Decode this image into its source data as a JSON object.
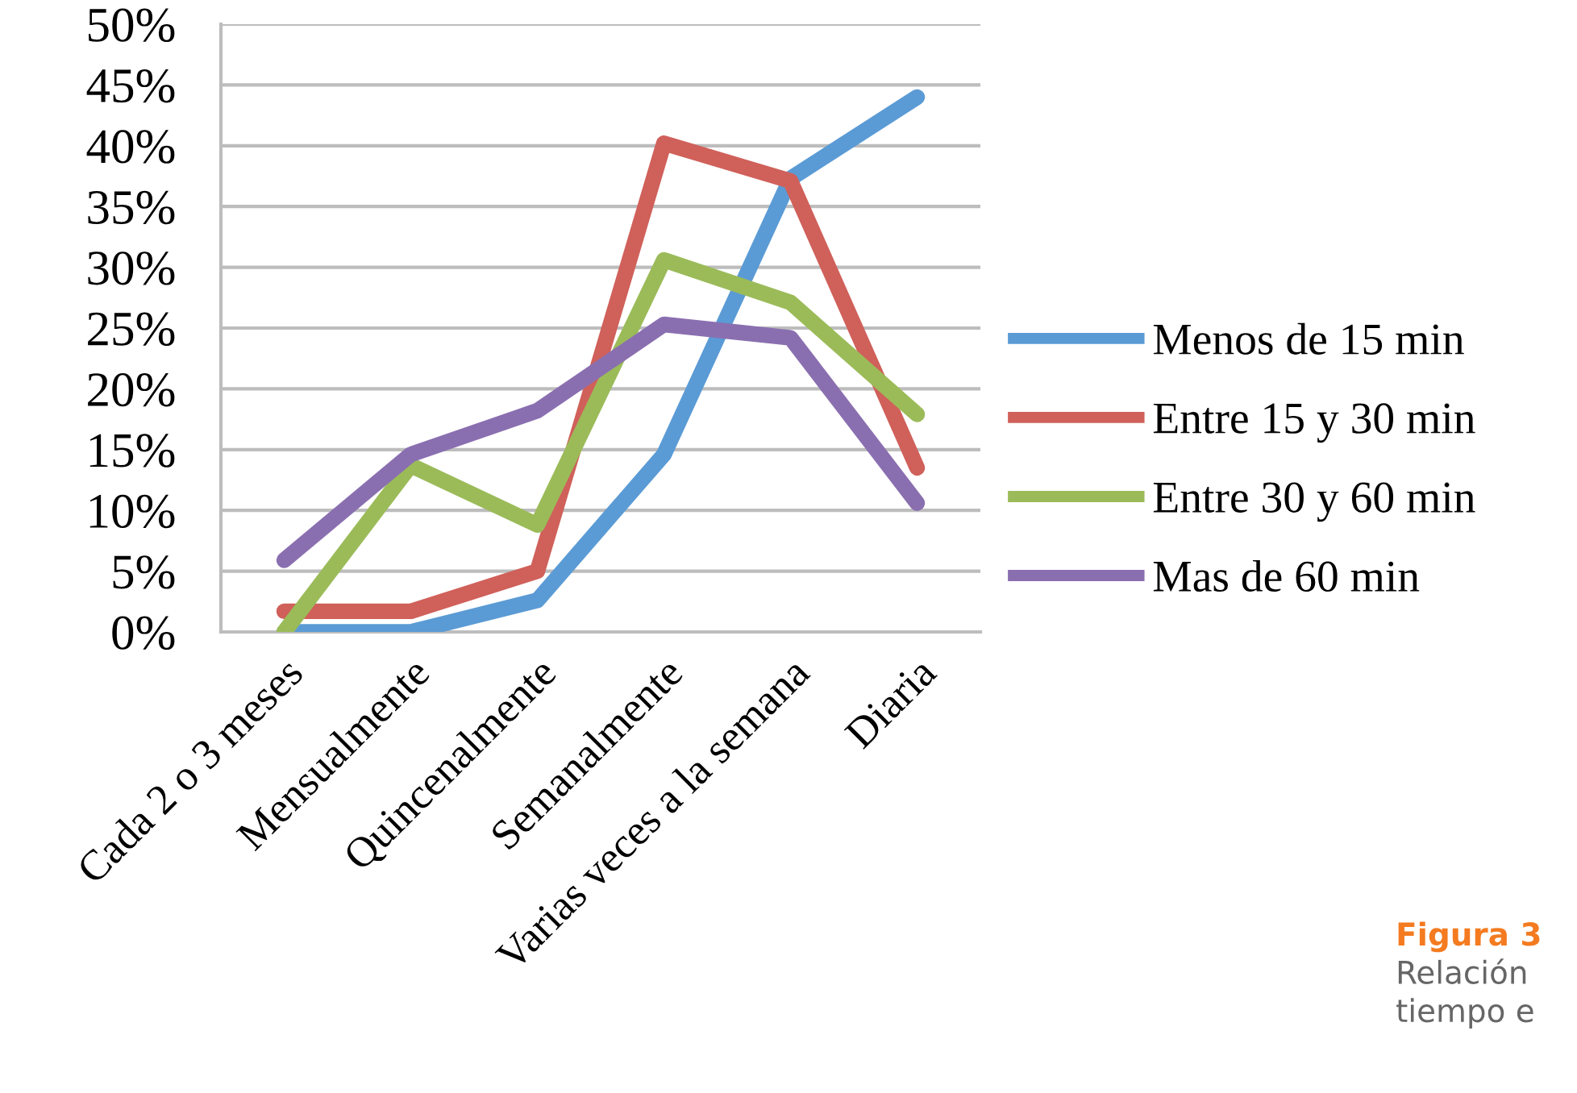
{
  "chart_data": {
    "type": "line",
    "categories": [
      "Cada 2 o 3 meses",
      "Mensualmente",
      "Quincenalmente",
      "Semanalmente",
      "Varias veces a la semana",
      "Diaria"
    ],
    "series": [
      {
        "name": "Menos de 15 min",
        "color": "#5b9bd5",
        "values": [
          0,
          0,
          2.6,
          14.6,
          37.3,
          44.0
        ]
      },
      {
        "name": "Entre 15 y 30 min",
        "color": "#d0605a",
        "values": [
          1.7,
          1.7,
          5.0,
          40.2,
          37.1,
          13.5
        ]
      },
      {
        "name": "Entre 30 y 60 min",
        "color": "#9bbb59",
        "values": [
          0,
          13.7,
          8.8,
          30.6,
          27.1,
          17.9
        ]
      },
      {
        "name": "Mas de 60 min",
        "color": "#8a6fb0",
        "values": [
          5.9,
          14.6,
          18.2,
          25.3,
          24.2,
          10.6
        ]
      }
    ],
    "ylim": [
      0,
      50
    ],
    "yticks": [
      {
        "value": 0,
        "label": "0%"
      },
      {
        "value": 5,
        "label": "5%"
      },
      {
        "value": 10,
        "label": "10%"
      },
      {
        "value": 15,
        "label": "15%"
      },
      {
        "value": 20,
        "label": "20%"
      },
      {
        "value": 25,
        "label": "25%"
      },
      {
        "value": 30,
        "label": "30%"
      },
      {
        "value": 35,
        "label": "35%"
      },
      {
        "value": 40,
        "label": "40%"
      },
      {
        "value": 45,
        "label": "45%"
      },
      {
        "value": 50,
        "label": "50%"
      }
    ],
    "grid": "y",
    "legend": "right",
    "marker": "none",
    "line_style": "solid",
    "annotations": [
      "Figura 3",
      "Relación",
      "tiempo e"
    ]
  }
}
